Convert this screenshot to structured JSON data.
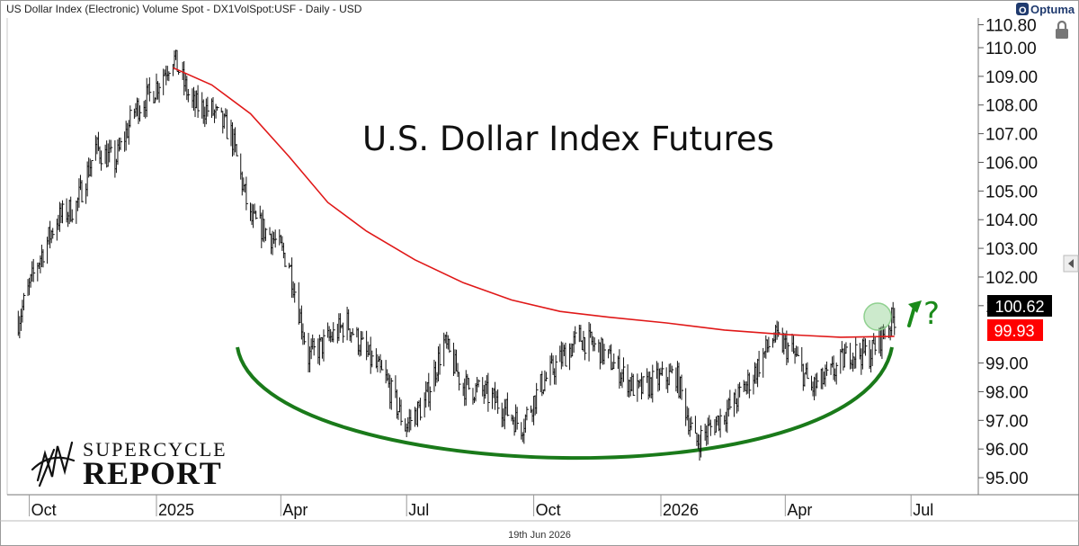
{
  "header": {
    "title": "US Dollar Index (Electronic) Volume Spot - DX1VolSpot:USF - Daily - USD",
    "brand": "Optuma"
  },
  "footer": {
    "date_label": "19th Jun 2026"
  },
  "logo": {
    "line1": "SUPERCYCLE",
    "line2": "REPORT"
  },
  "annotations": {
    "question": "?"
  },
  "badges": {
    "last_price": {
      "text": "100.62",
      "color": "#000000"
    },
    "ma_price": {
      "text": "99.93",
      "color": "#ff0000"
    }
  },
  "colors": {
    "ma_line": "#e01818",
    "price_bars": "#111111",
    "bowl_arc": "#1a7a1a",
    "highlight_circle": "#8fd08f"
  },
  "icons": [
    "lock-icon",
    "collapse-arrow-icon",
    "optuma-logo-icon",
    "supercycle-logo-icon",
    "up-arrow-icon"
  ],
  "chart_data": {
    "type": "ohlc-bar",
    "title": "U.S. Dollar Index Futures",
    "xlabel": "",
    "ylabel": "",
    "ylim": [
      94.5,
      110.8
    ],
    "yticks": [
      "110.80",
      "110.00",
      "109.00",
      "108.00",
      "107.00",
      "106.00",
      "105.00",
      "104.00",
      "103.00",
      "102.00",
      "101.00",
      "99.00",
      "98.00",
      "97.00",
      "96.00",
      "95.00"
    ],
    "xtick_labels": [
      "Oct",
      "2025",
      "Apr",
      "Jul",
      "Oct",
      "2026",
      "Apr",
      "Jul"
    ],
    "xtick_dates": [
      "2024-10-01",
      "2025-01-01",
      "2025-04-01",
      "2025-07-01",
      "2025-10-01",
      "2026-01-01",
      "2026-04-01",
      "2026-07-01"
    ],
    "x_range": [
      "2024-09-15",
      "2026-09-15"
    ],
    "grid": false,
    "series": [
      {
        "name": "",
        "style": "ohlc",
        "points": [
          [
            "2024-09-23",
            100.5
          ],
          [
            "2024-10-07",
            102.5
          ],
          [
            "2024-10-21",
            104.0
          ],
          [
            "2024-11-04",
            104.5
          ],
          [
            "2024-11-18",
            106.5
          ],
          [
            "2024-12-02",
            106.0
          ],
          [
            "2024-12-16",
            107.8
          ],
          [
            "2024-12-30",
            108.5
          ],
          [
            "2025-01-13",
            109.7
          ],
          [
            "2025-01-27",
            108.0
          ],
          [
            "2025-02-10",
            107.8
          ],
          [
            "2025-02-24",
            107.0
          ],
          [
            "2025-03-10",
            104.0
          ],
          [
            "2025-03-24",
            103.5
          ],
          [
            "2025-04-07",
            102.5
          ],
          [
            "2025-04-21",
            99.2
          ],
          [
            "2025-05-05",
            99.8
          ],
          [
            "2025-05-19",
            100.4
          ],
          [
            "2025-06-02",
            99.3
          ],
          [
            "2025-06-16",
            98.4
          ],
          [
            "2025-06-30",
            96.8
          ],
          [
            "2025-07-14",
            97.6
          ],
          [
            "2025-07-28",
            99.7
          ],
          [
            "2025-08-11",
            98.2
          ],
          [
            "2025-08-25",
            98.0
          ],
          [
            "2025-09-08",
            97.5
          ],
          [
            "2025-09-22",
            96.8
          ],
          [
            "2025-10-06",
            98.2
          ],
          [
            "2025-10-20",
            99.1
          ],
          [
            "2025-11-03",
            99.9
          ],
          [
            "2025-11-17",
            99.5
          ],
          [
            "2025-12-01",
            98.8
          ],
          [
            "2025-12-15",
            98.0
          ],
          [
            "2025-12-29",
            98.4
          ],
          [
            "2026-01-12",
            98.6
          ],
          [
            "2026-01-26",
            96.2
          ],
          [
            "2026-02-09",
            96.9
          ],
          [
            "2026-02-23",
            97.6
          ],
          [
            "2026-03-09",
            98.6
          ],
          [
            "2026-03-23",
            99.9
          ],
          [
            "2026-04-06",
            99.4
          ],
          [
            "2026-04-20",
            98.1
          ],
          [
            "2026-05-04",
            98.6
          ],
          [
            "2026-05-18",
            99.4
          ],
          [
            "2026-06-01",
            99.3
          ],
          [
            "2026-06-19",
            100.62
          ]
        ]
      },
      {
        "name": "",
        "style": "line",
        "points": [
          [
            "2025-01-13",
            109.3
          ],
          [
            "2025-02-10",
            108.7
          ],
          [
            "2025-03-10",
            107.7
          ],
          [
            "2025-04-07",
            106.2
          ],
          [
            "2025-05-05",
            104.6
          ],
          [
            "2025-06-02",
            103.6
          ],
          [
            "2025-07-07",
            102.6
          ],
          [
            "2025-08-11",
            101.8
          ],
          [
            "2025-09-15",
            101.2
          ],
          [
            "2025-10-20",
            100.8
          ],
          [
            "2025-11-24",
            100.6
          ],
          [
            "2026-01-05",
            100.4
          ],
          [
            "2026-02-16",
            100.15
          ],
          [
            "2026-03-30",
            100.0
          ],
          [
            "2026-05-11",
            99.9
          ],
          [
            "2026-06-19",
            99.93
          ]
        ]
      }
    ]
  }
}
